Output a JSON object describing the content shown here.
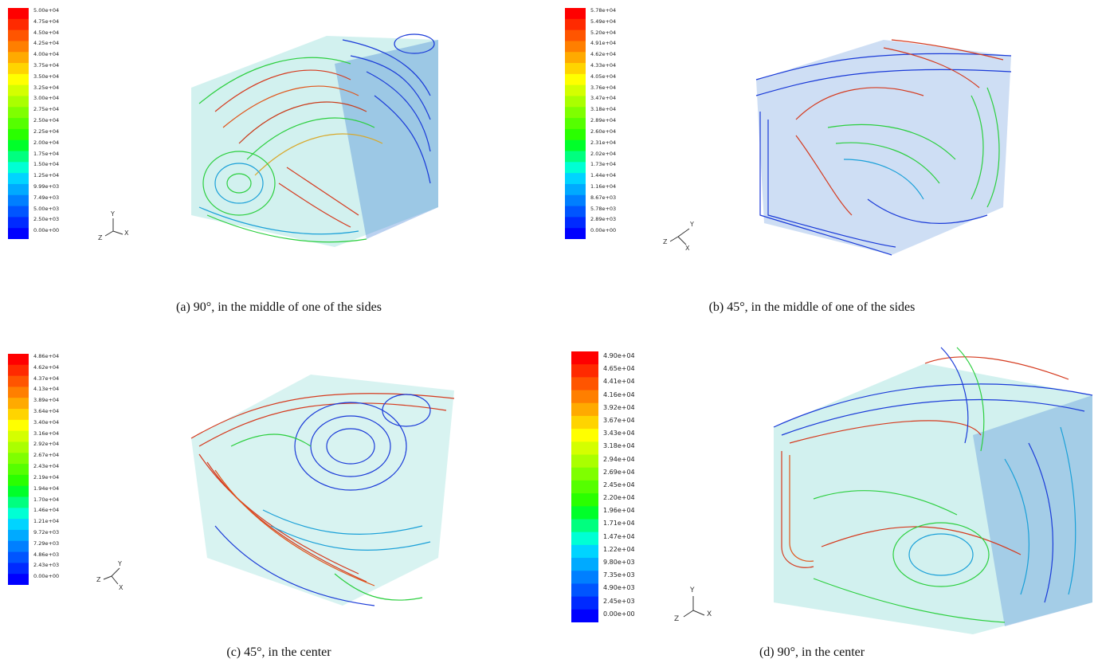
{
  "panels": [
    {
      "id": "a",
      "caption": "(a) 90°, in the middle of one of the sides",
      "legend": [
        "5.00e+04",
        "4.75e+04",
        "4.50e+04",
        "4.25e+04",
        "4.00e+04",
        "3.75e+04",
        "3.50e+04",
        "3.25e+04",
        "3.00e+04",
        "2.75e+04",
        "2.50e+04",
        "2.25e+04",
        "2.00e+04",
        "1.75e+04",
        "1.50e+04",
        "1.25e+04",
        "9.99e+03",
        "7.49e+03",
        "5.00e+03",
        "2.50e+03",
        "0.00e+00"
      ],
      "axes": {
        "y": "Y",
        "z": "Z",
        "x": "X"
      }
    },
    {
      "id": "b",
      "caption": "(b) 45°, in the middle of one of the sides",
      "legend": [
        "5.78e+04",
        "5.49e+04",
        "5.20e+04",
        "4.91e+04",
        "4.62e+04",
        "4.33e+04",
        "4.05e+04",
        "3.76e+04",
        "3.47e+04",
        "3.18e+04",
        "2.89e+04",
        "2.60e+04",
        "2.31e+04",
        "2.02e+04",
        "1.73e+04",
        "1.44e+04",
        "1.16e+04",
        "8.67e+03",
        "5.78e+03",
        "2.89e+03",
        "0.00e+00"
      ],
      "axes": {
        "y": "Y",
        "z": "Z",
        "x": "X"
      }
    },
    {
      "id": "c",
      "caption": "(c) 45°, in the center",
      "legend": [
        "4.86e+04",
        "4.62e+04",
        "4.37e+04",
        "4.13e+04",
        "3.89e+04",
        "3.64e+04",
        "3.40e+04",
        "3.16e+04",
        "2.92e+04",
        "2.67e+04",
        "2.43e+04",
        "2.19e+04",
        "1.94e+04",
        "1.70e+04",
        "1.46e+04",
        "1.21e+04",
        "9.72e+03",
        "7.29e+03",
        "4.86e+03",
        "2.43e+03",
        "0.00e+00"
      ],
      "axes": {
        "y": "Y",
        "z": "Z",
        "x": "X"
      }
    },
    {
      "id": "d",
      "caption": "(d) 90°, in the center",
      "legend": [
        "4.90e+04",
        "4.65e+04",
        "4.41e+04",
        "4.16e+04",
        "3.92e+04",
        "3.67e+04",
        "3.43e+04",
        "3.18e+04",
        "2.94e+04",
        "2.69e+04",
        "2.45e+04",
        "2.20e+04",
        "1.96e+04",
        "1.71e+04",
        "1.47e+04",
        "1.22e+04",
        "9.80e+03",
        "7.35e+03",
        "4.90e+03",
        "2.45e+03",
        "0.00e+00"
      ],
      "axes": {
        "y": "Y",
        "z": "Z",
        "x": "X"
      }
    }
  ],
  "colormap": [
    "#ff0000",
    "#ff2a00",
    "#ff5500",
    "#ff7f00",
    "#ffaa00",
    "#ffd400",
    "#ffff00",
    "#d4ff00",
    "#aaff00",
    "#7fff00",
    "#55ff00",
    "#2aff00",
    "#00ff2a",
    "#00ff7f",
    "#00ffd4",
    "#00d4ff",
    "#00aaff",
    "#007fff",
    "#0055ff",
    "#002aff",
    "#0000ff"
  ]
}
